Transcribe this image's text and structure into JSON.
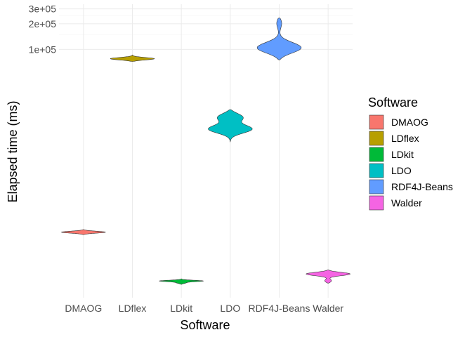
{
  "chart_data": {
    "type": "violin",
    "title": "",
    "xlabel": "Software",
    "ylabel": "Elapsed time (ms)",
    "y_scale": "log10",
    "ylim": [
      120,
      340000
    ],
    "y_ticks": [
      100000,
      200000,
      300000
    ],
    "y_tick_labels": [
      "1e+05",
      "2e+05",
      "3e+05"
    ],
    "y_minor_ticks": [
      150000,
      250000
    ],
    "categories": [
      "DMAOG",
      "LDflex",
      "LDkit",
      "LDO",
      "RDF4J-Beans",
      "Walder"
    ],
    "colors": [
      "#F8766D",
      "#B79F00",
      "#00BA38",
      "#00BFC4",
      "#619CFF",
      "#F564E3"
    ],
    "series": [
      {
        "name": "DMAOG",
        "min": 660,
        "max": 760,
        "peaks": [
          {
            "value": 708,
            "density": 1.0
          }
        ]
      },
      {
        "name": "LDflex",
        "min": 72000,
        "max": 86000,
        "peaks": [
          {
            "value": 77500,
            "density": 1.0
          }
        ]
      },
      {
        "name": "LDkit",
        "min": 172,
        "max": 200,
        "peaks": [
          {
            "value": 189,
            "density": 1.0
          },
          {
            "value": 179,
            "density": 0.22
          }
        ]
      },
      {
        "name": "LDO",
        "min": 8200,
        "max": 19600,
        "peaks": [
          {
            "value": 16100,
            "density": 0.65
          },
          {
            "value": 11500,
            "density": 1.0
          }
        ]
      },
      {
        "name": "RDF4J-Beans",
        "min": 75000,
        "max": 235000,
        "peaks": [
          {
            "value": 103000,
            "density": 1.0
          },
          {
            "value": 212000,
            "density": 0.15
          }
        ]
      },
      {
        "name": "Walder",
        "min": 178,
        "max": 255,
        "peaks": [
          {
            "value": 229,
            "density": 1.0
          },
          {
            "value": 188,
            "density": 0.18
          }
        ]
      }
    ]
  },
  "legend": {
    "title": "Software",
    "items": [
      {
        "label": "DMAOG",
        "color": "#F8766D"
      },
      {
        "label": "LDflex",
        "color": "#B79F00"
      },
      {
        "label": "LDkit",
        "color": "#00BA38"
      },
      {
        "label": "LDO",
        "color": "#00BFC4"
      },
      {
        "label": "RDF4J-Beans",
        "color": "#619CFF"
      },
      {
        "label": "Walder",
        "color": "#F564E3"
      }
    ]
  }
}
